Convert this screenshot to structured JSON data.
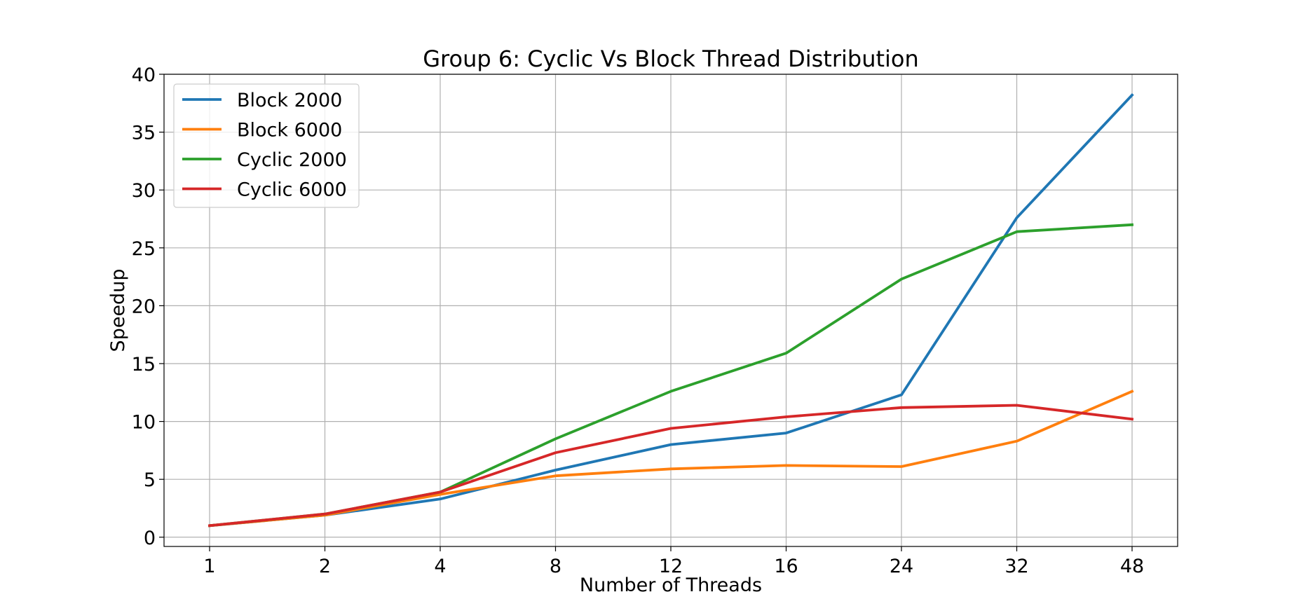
{
  "chart_data": {
    "type": "line",
    "title": "Group 6: Cyclic Vs Block Thread Distribution",
    "xlabel": "Number of Threads",
    "ylabel": "Speedup",
    "categories": [
      "1",
      "2",
      "4",
      "8",
      "12",
      "16",
      "24",
      "32",
      "48"
    ],
    "ylim": [
      -0.8,
      40
    ],
    "yticks": [
      0,
      5,
      10,
      15,
      20,
      25,
      30,
      35,
      40
    ],
    "grid": true,
    "legend_position": "top-left",
    "series": [
      {
        "name": "Block 2000",
        "color": "#1f77b4",
        "values": [
          1.0,
          1.9,
          3.3,
          5.8,
          8.0,
          9.0,
          12.3,
          27.6,
          38.2
        ]
      },
      {
        "name": "Block 6000",
        "color": "#ff7f0e",
        "values": [
          1.0,
          1.9,
          3.7,
          5.3,
          5.9,
          6.2,
          6.1,
          8.3,
          12.6
        ]
      },
      {
        "name": "Cyclic 2000",
        "color": "#2ca02c",
        "values": [
          1.0,
          2.0,
          3.9,
          8.5,
          12.6,
          15.9,
          22.3,
          26.4,
          27.0
        ]
      },
      {
        "name": "Cyclic 6000",
        "color": "#d62728",
        "values": [
          1.0,
          2.0,
          3.9,
          7.3,
          9.4,
          10.4,
          11.2,
          11.4,
          10.2
        ]
      }
    ]
  }
}
